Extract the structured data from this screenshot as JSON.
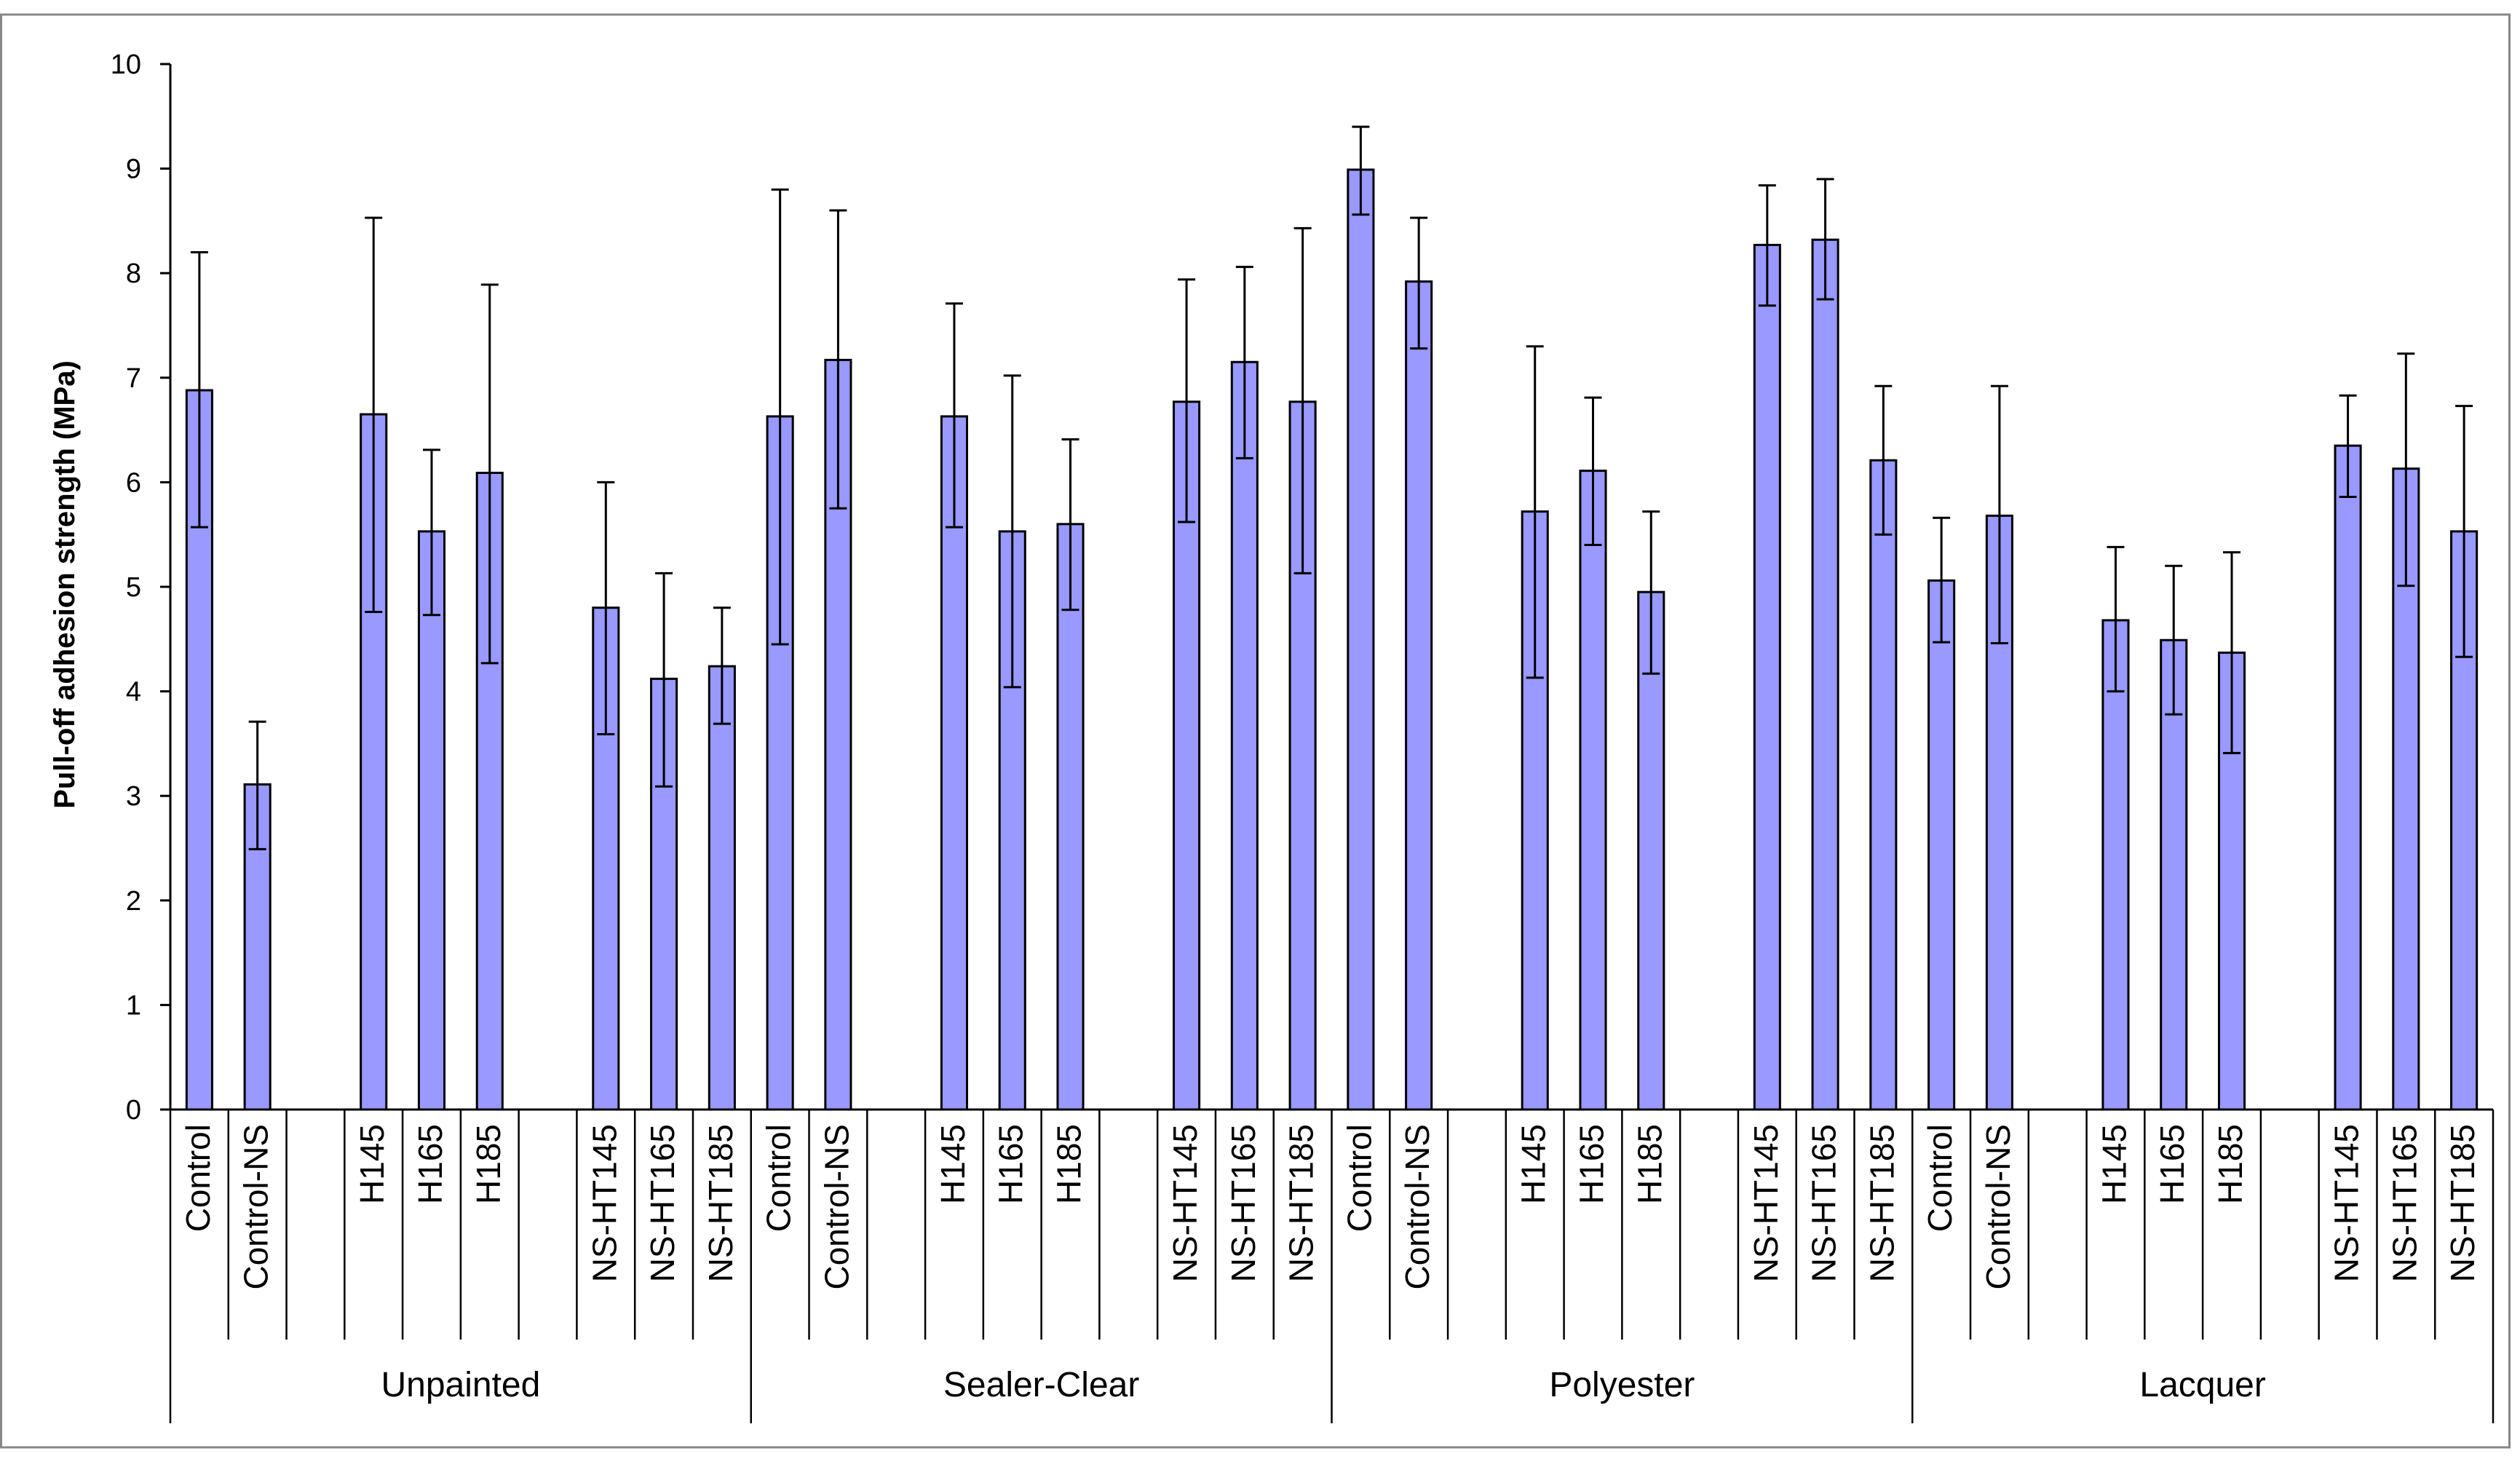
{
  "chart_data": {
    "type": "bar",
    "title": "",
    "xlabel": "",
    "ylabel": "Pull-off adhesion strength (MPa)",
    "ylim": [
      0,
      10
    ],
    "yticks": [
      "0",
      "1",
      "2",
      "3",
      "4",
      "5",
      "6",
      "7",
      "8",
      "9",
      "10"
    ],
    "grid": false,
    "legend": "none",
    "bar_color": "#9999ff",
    "groups": [
      {
        "name": "Unpainted",
        "bars": [
          {
            "label": "Control",
            "value": 6.88,
            "err_low": 5.57,
            "err_high": 8.2
          },
          {
            "label": "Control-NS",
            "value": 3.11,
            "err_low": 2.49,
            "err_high": 3.71
          },
          {
            "label": "",
            "value": null
          },
          {
            "label": "H145",
            "value": 6.65,
            "err_low": 4.76,
            "err_high": 8.53
          },
          {
            "label": "H165",
            "value": 5.53,
            "err_low": 4.73,
            "err_high": 6.31
          },
          {
            "label": "H185",
            "value": 6.09,
            "err_low": 4.27,
            "err_high": 7.89
          },
          {
            "label": "",
            "value": null
          },
          {
            "label": "NS-HT145",
            "value": 4.8,
            "err_low": 3.59,
            "err_high": 6.0
          },
          {
            "label": "NS-HT165",
            "value": 4.12,
            "err_low": 3.09,
            "err_high": 5.13
          },
          {
            "label": "NS-HT185",
            "value": 4.24,
            "err_low": 3.69,
            "err_high": 4.8
          }
        ]
      },
      {
        "name": "Sealer-Clear",
        "bars": [
          {
            "label": "Control",
            "value": 6.63,
            "err_low": 4.45,
            "err_high": 8.8
          },
          {
            "label": "Control-NS",
            "value": 7.17,
            "err_low": 5.75,
            "err_high": 8.6
          },
          {
            "label": "",
            "value": null
          },
          {
            "label": "H145",
            "value": 6.63,
            "err_low": 5.57,
            "err_high": 7.71
          },
          {
            "label": "H165",
            "value": 5.53,
            "err_low": 4.04,
            "err_high": 7.02
          },
          {
            "label": "H185",
            "value": 5.6,
            "err_low": 4.78,
            "err_high": 6.41
          },
          {
            "label": "",
            "value": null
          },
          {
            "label": "NS-HT145",
            "value": 6.77,
            "err_low": 5.62,
            "err_high": 7.94
          },
          {
            "label": "NS-HT165",
            "value": 7.15,
            "err_low": 6.23,
            "err_high": 8.06
          },
          {
            "label": "NS-HT185",
            "value": 6.77,
            "err_low": 5.13,
            "err_high": 8.43
          }
        ]
      },
      {
        "name": "Polyester",
        "bars": [
          {
            "label": "Control",
            "value": 8.99,
            "err_low": 8.56,
            "err_high": 9.4
          },
          {
            "label": "Control-NS",
            "value": 7.92,
            "err_low": 7.28,
            "err_high": 8.53
          },
          {
            "label": "",
            "value": null
          },
          {
            "label": "H145",
            "value": 5.72,
            "err_low": 4.13,
            "err_high": 7.3
          },
          {
            "label": "H165",
            "value": 6.11,
            "err_low": 5.4,
            "err_high": 6.81
          },
          {
            "label": "H185",
            "value": 4.95,
            "err_low": 4.17,
            "err_high": 5.72
          },
          {
            "label": "",
            "value": null
          },
          {
            "label": "NS-HT145",
            "value": 8.27,
            "err_low": 7.69,
            "err_high": 8.84
          },
          {
            "label": "NS-HT165",
            "value": 8.32,
            "err_low": 7.75,
            "err_high": 8.9
          },
          {
            "label": "NS-HT185",
            "value": 6.21,
            "err_low": 5.5,
            "err_high": 6.92
          }
        ]
      },
      {
        "name": "Lacquer",
        "bars": [
          {
            "label": "Control",
            "value": 5.06,
            "err_low": 4.47,
            "err_high": 5.66
          },
          {
            "label": "Control-NS",
            "value": 5.68,
            "err_low": 4.46,
            "err_high": 6.92
          },
          {
            "label": "",
            "value": null
          },
          {
            "label": "H145",
            "value": 4.68,
            "err_low": 4.0,
            "err_high": 5.38
          },
          {
            "label": "H165",
            "value": 4.49,
            "err_low": 3.78,
            "err_high": 5.2
          },
          {
            "label": "H185",
            "value": 4.37,
            "err_low": 3.41,
            "err_high": 5.33
          },
          {
            "label": "",
            "value": null
          },
          {
            "label": "NS-HT145",
            "value": 6.35,
            "err_low": 5.86,
            "err_high": 6.83
          },
          {
            "label": "NS-HT165",
            "value": 6.13,
            "err_low": 5.01,
            "err_high": 7.23
          },
          {
            "label": "NS-HT185",
            "value": 5.53,
            "err_low": 4.33,
            "err_high": 6.73
          }
        ]
      }
    ]
  }
}
